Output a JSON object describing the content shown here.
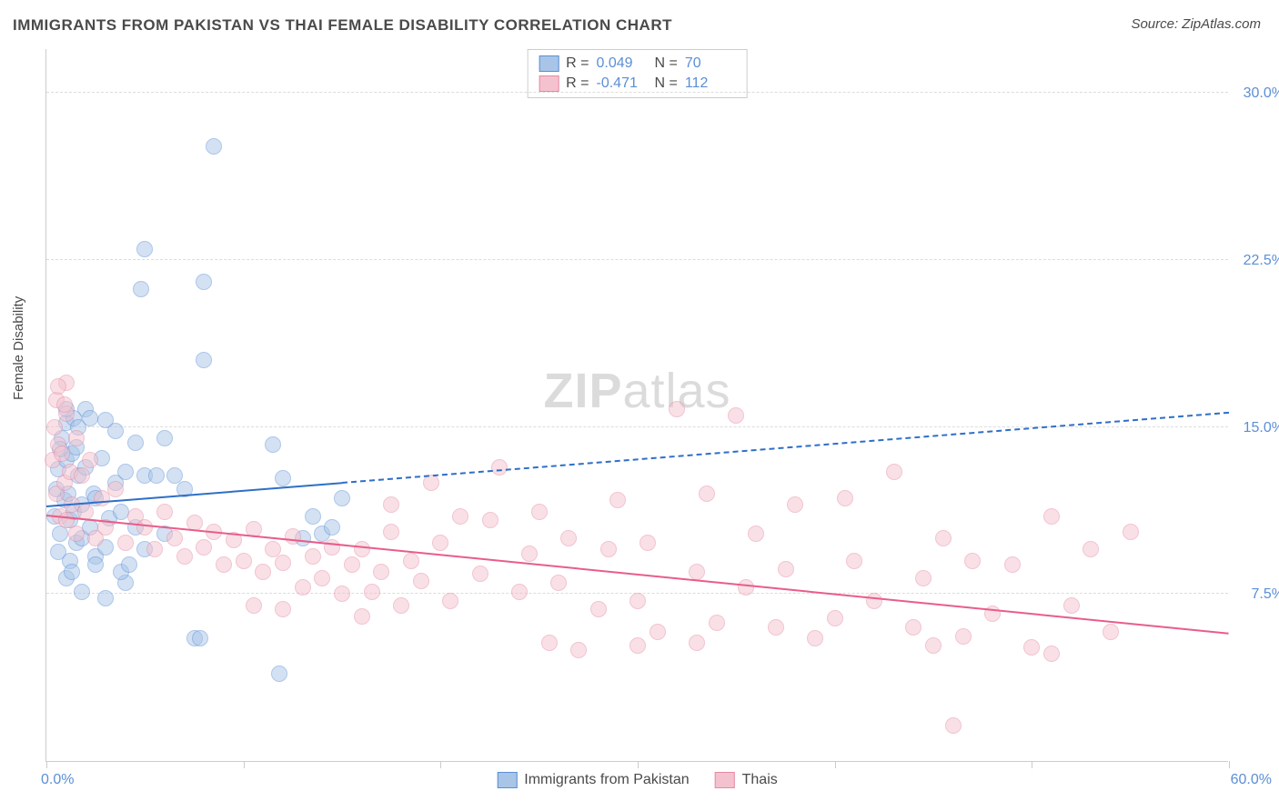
{
  "title": "IMMIGRANTS FROM PAKISTAN VS THAI FEMALE DISABILITY CORRELATION CHART",
  "source": "Source: ZipAtlas.com",
  "ylabel": "Female Disability",
  "watermark": {
    "bold": "ZIP",
    "rest": "atlas"
  },
  "chart": {
    "type": "scatter",
    "background_color": "#ffffff",
    "grid_color": "#dcdcdc",
    "axis_color": "#cccccc",
    "tick_label_color": "#5b8fd6",
    "text_color": "#4a4a4a",
    "title_fontsize": 17,
    "label_fontsize": 15,
    "tick_fontsize": 16,
    "xlim": [
      0,
      60
    ],
    "ylim": [
      0,
      32
    ],
    "x_ticks": [
      0,
      10,
      20,
      30,
      40,
      50,
      60
    ],
    "y_gridlines": [
      7.5,
      15.0,
      22.5,
      30.0
    ],
    "y_labels": [
      "7.5%",
      "15.0%",
      "22.5%",
      "30.0%"
    ],
    "x_min_label": "0.0%",
    "x_max_label": "60.0%",
    "point_radius": 9,
    "point_opacity": 0.5,
    "series": [
      {
        "name": "Immigrants from Pakistan",
        "color_fill": "#a8c5e8",
        "color_stroke": "#5b8fd6",
        "R": "0.049",
        "N": "70",
        "trend": {
          "x1": 0,
          "y1": 11.4,
          "x2": 60,
          "y2": 15.6,
          "solid_until_x": 15,
          "color": "#2e6fc7",
          "width_solid": 2.5,
          "width_dash": 2,
          "dash": "7,6"
        },
        "points": [
          [
            0.4,
            11.0
          ],
          [
            0.5,
            12.2
          ],
          [
            0.6,
            13.1
          ],
          [
            0.6,
            9.4
          ],
          [
            0.7,
            10.2
          ],
          [
            0.8,
            14.5
          ],
          [
            0.9,
            11.7
          ],
          [
            1.0,
            15.2
          ],
          [
            1.0,
            13.5
          ],
          [
            1.1,
            12.0
          ],
          [
            1.2,
            9.0
          ],
          [
            1.2,
            10.8
          ],
          [
            1.3,
            13.8
          ],
          [
            1.4,
            11.2
          ],
          [
            1.5,
            14.1
          ],
          [
            1.5,
            9.8
          ],
          [
            1.6,
            12.8
          ],
          [
            1.8,
            11.5
          ],
          [
            1.8,
            10.0
          ],
          [
            2.0,
            15.8
          ],
          [
            2.0,
            13.2
          ],
          [
            2.2,
            10.5
          ],
          [
            2.4,
            12.0
          ],
          [
            2.5,
            9.2
          ],
          [
            2.5,
            11.8
          ],
          [
            2.8,
            13.6
          ],
          [
            3.0,
            15.3
          ],
          [
            3.0,
            9.6
          ],
          [
            3.2,
            10.9
          ],
          [
            3.5,
            12.5
          ],
          [
            3.5,
            14.8
          ],
          [
            3.8,
            11.2
          ],
          [
            4.0,
            8.0
          ],
          [
            4.0,
            13.0
          ],
          [
            4.5,
            14.3
          ],
          [
            4.5,
            10.5
          ],
          [
            5.0,
            12.8
          ],
          [
            5.0,
            9.5
          ],
          [
            5.6,
            12.8
          ],
          [
            6.0,
            14.5
          ],
          [
            6.0,
            10.2
          ],
          [
            6.5,
            12.8
          ],
          [
            7.0,
            12.2
          ],
          [
            7.5,
            5.5
          ],
          [
            7.8,
            5.5
          ],
          [
            8.0,
            18.0
          ],
          [
            8.0,
            21.5
          ],
          [
            5.0,
            23.0
          ],
          [
            4.8,
            21.2
          ],
          [
            8.5,
            27.6
          ],
          [
            11.5,
            14.2
          ],
          [
            12.0,
            12.7
          ],
          [
            13.0,
            10.0
          ],
          [
            13.5,
            11.0
          ],
          [
            14.0,
            10.2
          ],
          [
            14.5,
            10.5
          ],
          [
            15.0,
            11.8
          ],
          [
            11.8,
            3.9
          ],
          [
            3.0,
            7.3
          ],
          [
            1.4,
            15.4
          ],
          [
            1.0,
            15.8
          ],
          [
            0.7,
            14.0
          ],
          [
            1.6,
            15.0
          ],
          [
            2.2,
            15.4
          ],
          [
            1.0,
            8.2
          ],
          [
            2.5,
            8.8
          ],
          [
            1.3,
            8.5
          ],
          [
            3.8,
            8.5
          ],
          [
            4.2,
            8.8
          ],
          [
            1.8,
            7.6
          ]
        ]
      },
      {
        "name": "Thais",
        "color_fill": "#f4c2ce",
        "color_stroke": "#e68aa2",
        "R": "-0.471",
        "N": "112",
        "trend": {
          "x1": 0,
          "y1": 11.0,
          "x2": 60,
          "y2": 5.7,
          "solid_until_x": 60,
          "color": "#e85d8a",
          "width_solid": 2.5,
          "width_dash": 0,
          "dash": ""
        },
        "points": [
          [
            0.3,
            13.5
          ],
          [
            0.4,
            15.0
          ],
          [
            0.5,
            12.0
          ],
          [
            0.5,
            16.2
          ],
          [
            0.6,
            14.2
          ],
          [
            0.7,
            11.0
          ],
          [
            0.8,
            13.8
          ],
          [
            0.9,
            12.5
          ],
          [
            1.0,
            15.6
          ],
          [
            1.0,
            10.8
          ],
          [
            1.2,
            13.0
          ],
          [
            1.3,
            11.5
          ],
          [
            1.5,
            14.5
          ],
          [
            1.5,
            10.2
          ],
          [
            1.8,
            12.8
          ],
          [
            2.0,
            11.2
          ],
          [
            2.2,
            13.5
          ],
          [
            2.5,
            10.0
          ],
          [
            2.8,
            11.8
          ],
          [
            3.0,
            10.5
          ],
          [
            3.5,
            12.2
          ],
          [
            4.0,
            9.8
          ],
          [
            4.5,
            11.0
          ],
          [
            5.0,
            10.5
          ],
          [
            5.5,
            9.5
          ],
          [
            6.0,
            11.2
          ],
          [
            6.5,
            10.0
          ],
          [
            7.0,
            9.2
          ],
          [
            7.5,
            10.7
          ],
          [
            8.0,
            9.6
          ],
          [
            8.5,
            10.3
          ],
          [
            9.0,
            8.8
          ],
          [
            9.5,
            9.9
          ],
          [
            10.0,
            9.0
          ],
          [
            10.5,
            10.4
          ],
          [
            11.0,
            8.5
          ],
          [
            11.5,
            9.5
          ],
          [
            12.0,
            8.9
          ],
          [
            12.5,
            10.1
          ],
          [
            13.0,
            7.8
          ],
          [
            13.5,
            9.2
          ],
          [
            14.0,
            8.2
          ],
          [
            14.5,
            9.6
          ],
          [
            15.0,
            7.5
          ],
          [
            15.5,
            8.8
          ],
          [
            16.0,
            9.5
          ],
          [
            16.5,
            7.6
          ],
          [
            17.0,
            8.5
          ],
          [
            17.5,
            10.3
          ],
          [
            18.0,
            7.0
          ],
          [
            18.5,
            9.0
          ],
          [
            19.0,
            8.1
          ],
          [
            20.0,
            9.8
          ],
          [
            20.5,
            7.2
          ],
          [
            21.0,
            11.0
          ],
          [
            22.0,
            8.4
          ],
          [
            22.5,
            10.8
          ],
          [
            23.0,
            13.2
          ],
          [
            24.0,
            7.6
          ],
          [
            24.5,
            9.3
          ],
          [
            25.0,
            11.2
          ],
          [
            25.5,
            5.3
          ],
          [
            26.0,
            8.0
          ],
          [
            26.5,
            10.0
          ],
          [
            27.0,
            5.0
          ],
          [
            28.0,
            6.8
          ],
          [
            28.5,
            9.5
          ],
          [
            29.0,
            11.7
          ],
          [
            30.0,
            7.2
          ],
          [
            30.5,
            9.8
          ],
          [
            31.0,
            5.8
          ],
          [
            32.0,
            15.8
          ],
          [
            33.0,
            8.5
          ],
          [
            33.5,
            12.0
          ],
          [
            34.0,
            6.2
          ],
          [
            35.0,
            15.5
          ],
          [
            35.5,
            7.8
          ],
          [
            36.0,
            10.2
          ],
          [
            37.0,
            6.0
          ],
          [
            37.5,
            8.6
          ],
          [
            38.0,
            11.5
          ],
          [
            39.0,
            5.5
          ],
          [
            40.0,
            6.4
          ],
          [
            40.5,
            11.8
          ],
          [
            41.0,
            9.0
          ],
          [
            42.0,
            7.2
          ],
          [
            43.0,
            13.0
          ],
          [
            44.0,
            6.0
          ],
          [
            44.5,
            8.2
          ],
          [
            45.0,
            5.2
          ],
          [
            45.5,
            10.0
          ],
          [
            46.0,
            1.6
          ],
          [
            46.5,
            5.6
          ],
          [
            47.0,
            9.0
          ],
          [
            48.0,
            6.6
          ],
          [
            49.0,
            8.8
          ],
          [
            50.0,
            5.1
          ],
          [
            51.0,
            11.0
          ],
          [
            52.0,
            7.0
          ],
          [
            53.0,
            9.5
          ],
          [
            54.0,
            5.8
          ],
          [
            55.0,
            10.3
          ],
          [
            51.0,
            4.8
          ],
          [
            30.0,
            5.2
          ],
          [
            33.0,
            5.3
          ],
          [
            12.0,
            6.8
          ],
          [
            16.0,
            6.5
          ],
          [
            10.5,
            7.0
          ],
          [
            17.5,
            11.5
          ],
          [
            19.5,
            12.5
          ],
          [
            1.0,
            17.0
          ],
          [
            0.6,
            16.8
          ],
          [
            0.9,
            16.0
          ]
        ]
      }
    ]
  },
  "legend_top_labels": {
    "R": "R =",
    "N": "N ="
  },
  "legend_bottom": [
    {
      "series": 0
    },
    {
      "series": 1
    }
  ]
}
